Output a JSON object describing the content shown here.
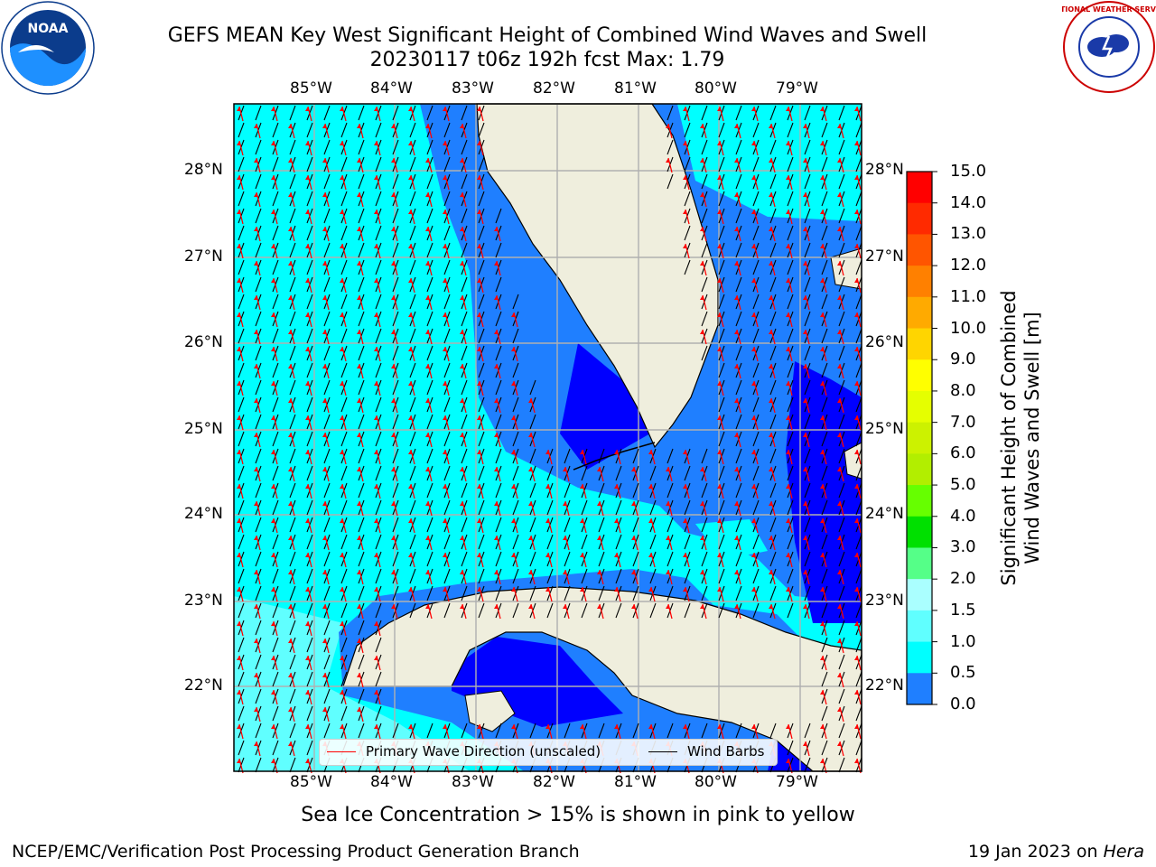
{
  "header": {
    "title_line1": "GEFS MEAN Key West Significant Height of Combined Wind Waves and Swell",
    "title_line2": "20230117 t06z 192h fcst   Max: 1.79"
  },
  "logos": {
    "noaa_label": "NOAA",
    "nws_label": "NATIONAL WEATHER SERVICE"
  },
  "map": {
    "lon_labels": [
      "85°W",
      "84°W",
      "83°W",
      "82°W",
      "81°W",
      "80°W",
      "79°W"
    ],
    "lat_labels": [
      "28°N",
      "27°N",
      "26°N",
      "25°N",
      "24°N",
      "23°N",
      "22°N"
    ],
    "colors": {
      "land": "#efeedd",
      "deep_blue": "#0000ff",
      "mid_blue": "#1f7fff",
      "cyan": "#00ffff",
      "light_cyan": "#60ffff",
      "wave_arrow": "#ff0000",
      "wind_barb": "#000000",
      "grid": "#b0b0b0"
    }
  },
  "legend": {
    "primary_wave": "Primary Wave Direction (unscaled)",
    "wind_barbs": "Wind Barbs"
  },
  "colorbar": {
    "title_line1": "Significant Height of Combined",
    "title_line2": "Wind Waves and Swell [m]",
    "ticks": [
      "15.0",
      "14.0",
      "13.0",
      "12.0",
      "11.0",
      "10.0",
      "9.0",
      "8.0",
      "7.0",
      "6.0",
      "5.0",
      "4.0",
      "3.0",
      "2.0",
      "1.5",
      "1.0",
      "0.5",
      "0.0"
    ],
    "colors": [
      "#ff0000",
      "#ff2a00",
      "#ff5500",
      "#ff8000",
      "#ffaa00",
      "#ffd500",
      "#ffff00",
      "#e5ff00",
      "#ccf200",
      "#b2ee00",
      "#66ff00",
      "#00e000",
      "#55ff88",
      "#aaffff",
      "#60ffff",
      "#00ffff",
      "#1f7fff",
      "#0000ff"
    ]
  },
  "footer": {
    "ice_note": "Sea Ice Concentration > 15% is shown in pink to yellow",
    "left": "NCEP/EMC/Verification Post Processing Product Generation Branch",
    "right_date": "19 Jan 2023 on ",
    "right_host": "Hera"
  }
}
